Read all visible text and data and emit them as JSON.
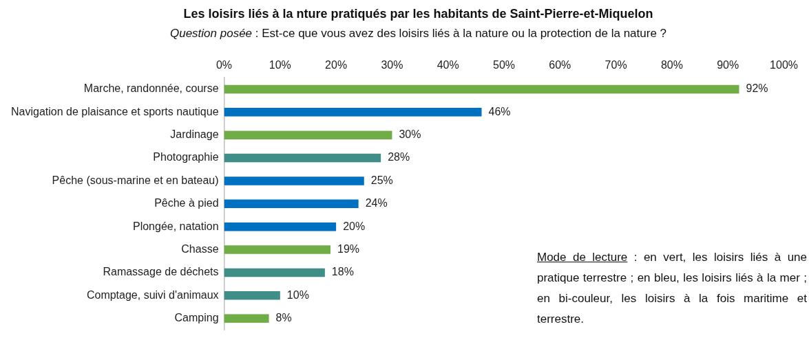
{
  "chart_data": {
    "type": "bar",
    "orientation": "horizontal",
    "title": "Les loisirs liés à la nture pratiqués par les habitants de Saint-Pierre-et-Miquelon",
    "subtitle": "Question posée : Est-ce que vous avez des loisirs liés à la nature ou la protection de la nature ?",
    "categories": [
      "Marche, randonnée, course",
      "Navigation de plaisance et sports nautique",
      "Jardinage",
      "Photographie",
      "Pêche (sous-marine et en bateau)",
      "Pêche à pied",
      "Plongée, natation",
      "Chasse",
      "Ramassage de déchets",
      "Comptage, suivi d'animaux",
      "Camping"
    ],
    "values": [
      92,
      46,
      30,
      28,
      25,
      24,
      20,
      19,
      18,
      10,
      8
    ],
    "colors": [
      "#70ad47",
      "#0070c0",
      "#70ad47",
      "#3f8f88",
      "#0070c0",
      "#0070c0",
      "#0070c0",
      "#70ad47",
      "#3f8f88",
      "#3f8f88",
      "#70ad47"
    ],
    "value_labels": [
      "92%",
      "46%",
      "30%",
      "28%",
      "25%",
      "24%",
      "20%",
      "19%",
      "18%",
      "10%",
      "8%"
    ],
    "xlim": [
      0,
      100
    ],
    "xticks": [
      {
        "value": 0,
        "label": "0%"
      },
      {
        "value": 10,
        "label": "10%"
      },
      {
        "value": 20,
        "label": "20%"
      },
      {
        "value": 30,
        "label": "30%"
      },
      {
        "value": 40,
        "label": "40%"
      },
      {
        "value": 50,
        "label": "50%"
      },
      {
        "value": 60,
        "label": "60%"
      },
      {
        "value": 70,
        "label": "70%"
      },
      {
        "value": 80,
        "label": "80%"
      },
      {
        "value": 90,
        "label": "90%"
      },
      {
        "value": 100,
        "label": "100%"
      }
    ],
    "grid": false,
    "legend": false,
    "annotations": [
      "Mode de lecture : en vert, les loisirs liés à une pratique terrestre ; en bleu, les loisirs liés à la mer ; en bi-couleur, les loisirs à la fois maritime et terrestre."
    ]
  }
}
